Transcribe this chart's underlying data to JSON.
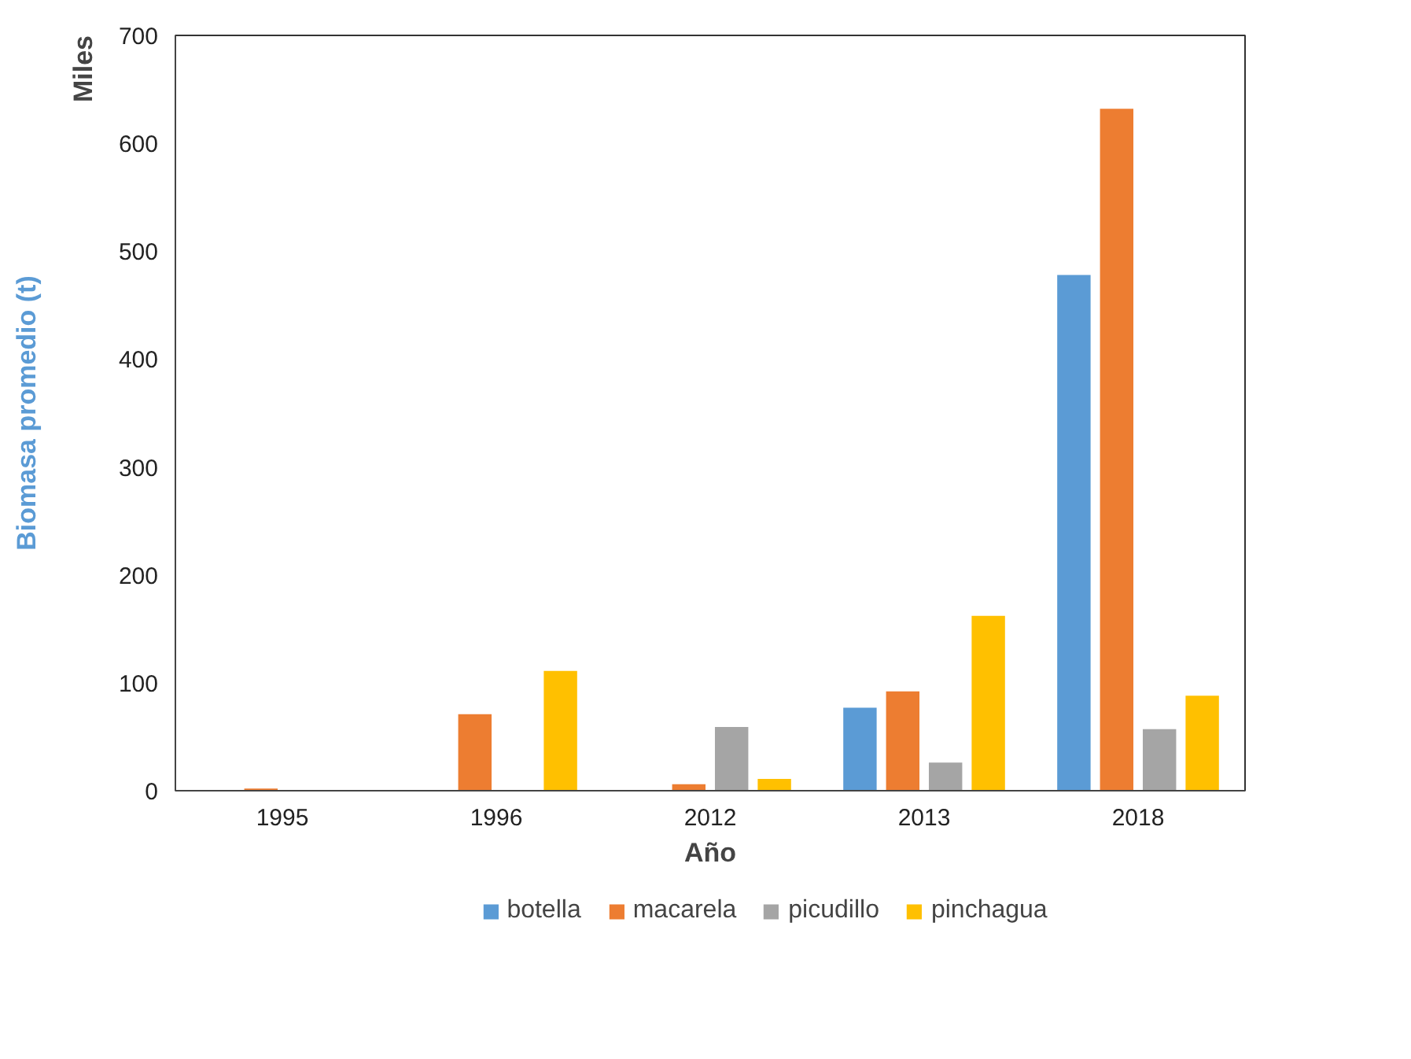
{
  "chart_data": {
    "type": "bar",
    "categories": [
      "1995",
      "1996",
      "2012",
      "2013",
      "2018"
    ],
    "series": [
      {
        "name": "botella",
        "color": "#5b9bd5",
        "values": [
          0,
          0,
          0,
          77,
          478
        ]
      },
      {
        "name": "macarela",
        "color": "#ed7d31",
        "values": [
          2,
          71,
          6,
          92,
          632
        ]
      },
      {
        "name": "picudillo",
        "color": "#a5a5a5",
        "values": [
          0,
          0,
          59,
          26,
          57
        ]
      },
      {
        "name": "pinchagua",
        "color": "#ffc000",
        "values": [
          0,
          111,
          11,
          162,
          88
        ]
      }
    ],
    "ylim": [
      0,
      700
    ],
    "yticks": [
      0,
      100,
      200,
      300,
      400,
      500,
      600,
      700
    ],
    "xlabel": "Año",
    "ylabel": "Biomasa promedio (t)",
    "annotations": [
      "Miles"
    ],
    "grid": false,
    "legend": "bottom"
  }
}
